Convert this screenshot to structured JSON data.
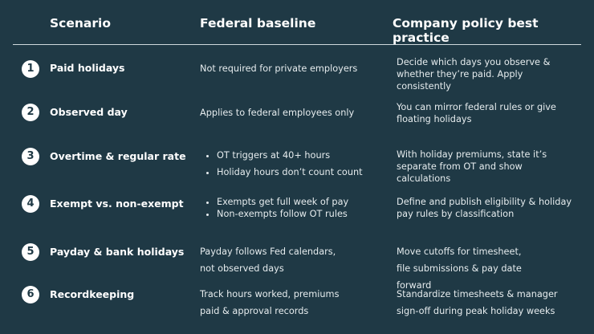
{
  "header": {
    "scenario": "Scenario",
    "federal": "Federal baseline",
    "company": "Company policy best practice"
  },
  "rows": [
    {
      "num": "1",
      "scenario": "Paid holidays",
      "federal": "Not required for private employers",
      "company": "Decide which days you observe & whether they’re paid. Apply consistently"
    },
    {
      "num": "2",
      "scenario": "Observed day",
      "federal": "Applies to federal employees only",
      "company": "You can mirror federal rules or give floating holidays"
    },
    {
      "num": "3",
      "scenario": "Overtime & regular rate",
      "federal_bullets": [
        "OT triggers at 40+ hours",
        "Holiday hours don’t count count"
      ],
      "company": "With holiday premiums, state it’s separate from OT and show calculations"
    },
    {
      "num": "4",
      "scenario": "Exempt vs. non-exempt",
      "federal_bullets": [
        "Exempts get full week of pay",
        "Non-exempts follow OT rules"
      ],
      "company": "Define and publish eligibility & holiday pay rules by classification"
    },
    {
      "num": "5",
      "scenario": "Payday & bank holidays",
      "federal": "Payday follows Fed calendars, not observed days",
      "company": "Move cutoffs for timesheet, file submissions & pay date forward"
    },
    {
      "num": "6",
      "scenario": "Recordkeeping",
      "federal": "Track hours worked, premiums paid & approval records",
      "company": "Standardize timesheets & manager sign-off during peak holiday weeks"
    }
  ],
  "colors": {
    "background": "#1f3945",
    "text": "#ffffff"
  }
}
